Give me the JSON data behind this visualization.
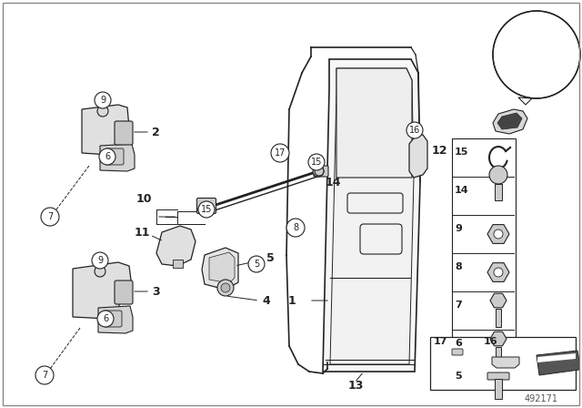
{
  "bg_color": "#ffffff",
  "diagram_number": "492171",
  "line_color": "#222222",
  "light_gray": "#e8e8e8",
  "mid_gray": "#cccccc",
  "dark_gray": "#888888"
}
